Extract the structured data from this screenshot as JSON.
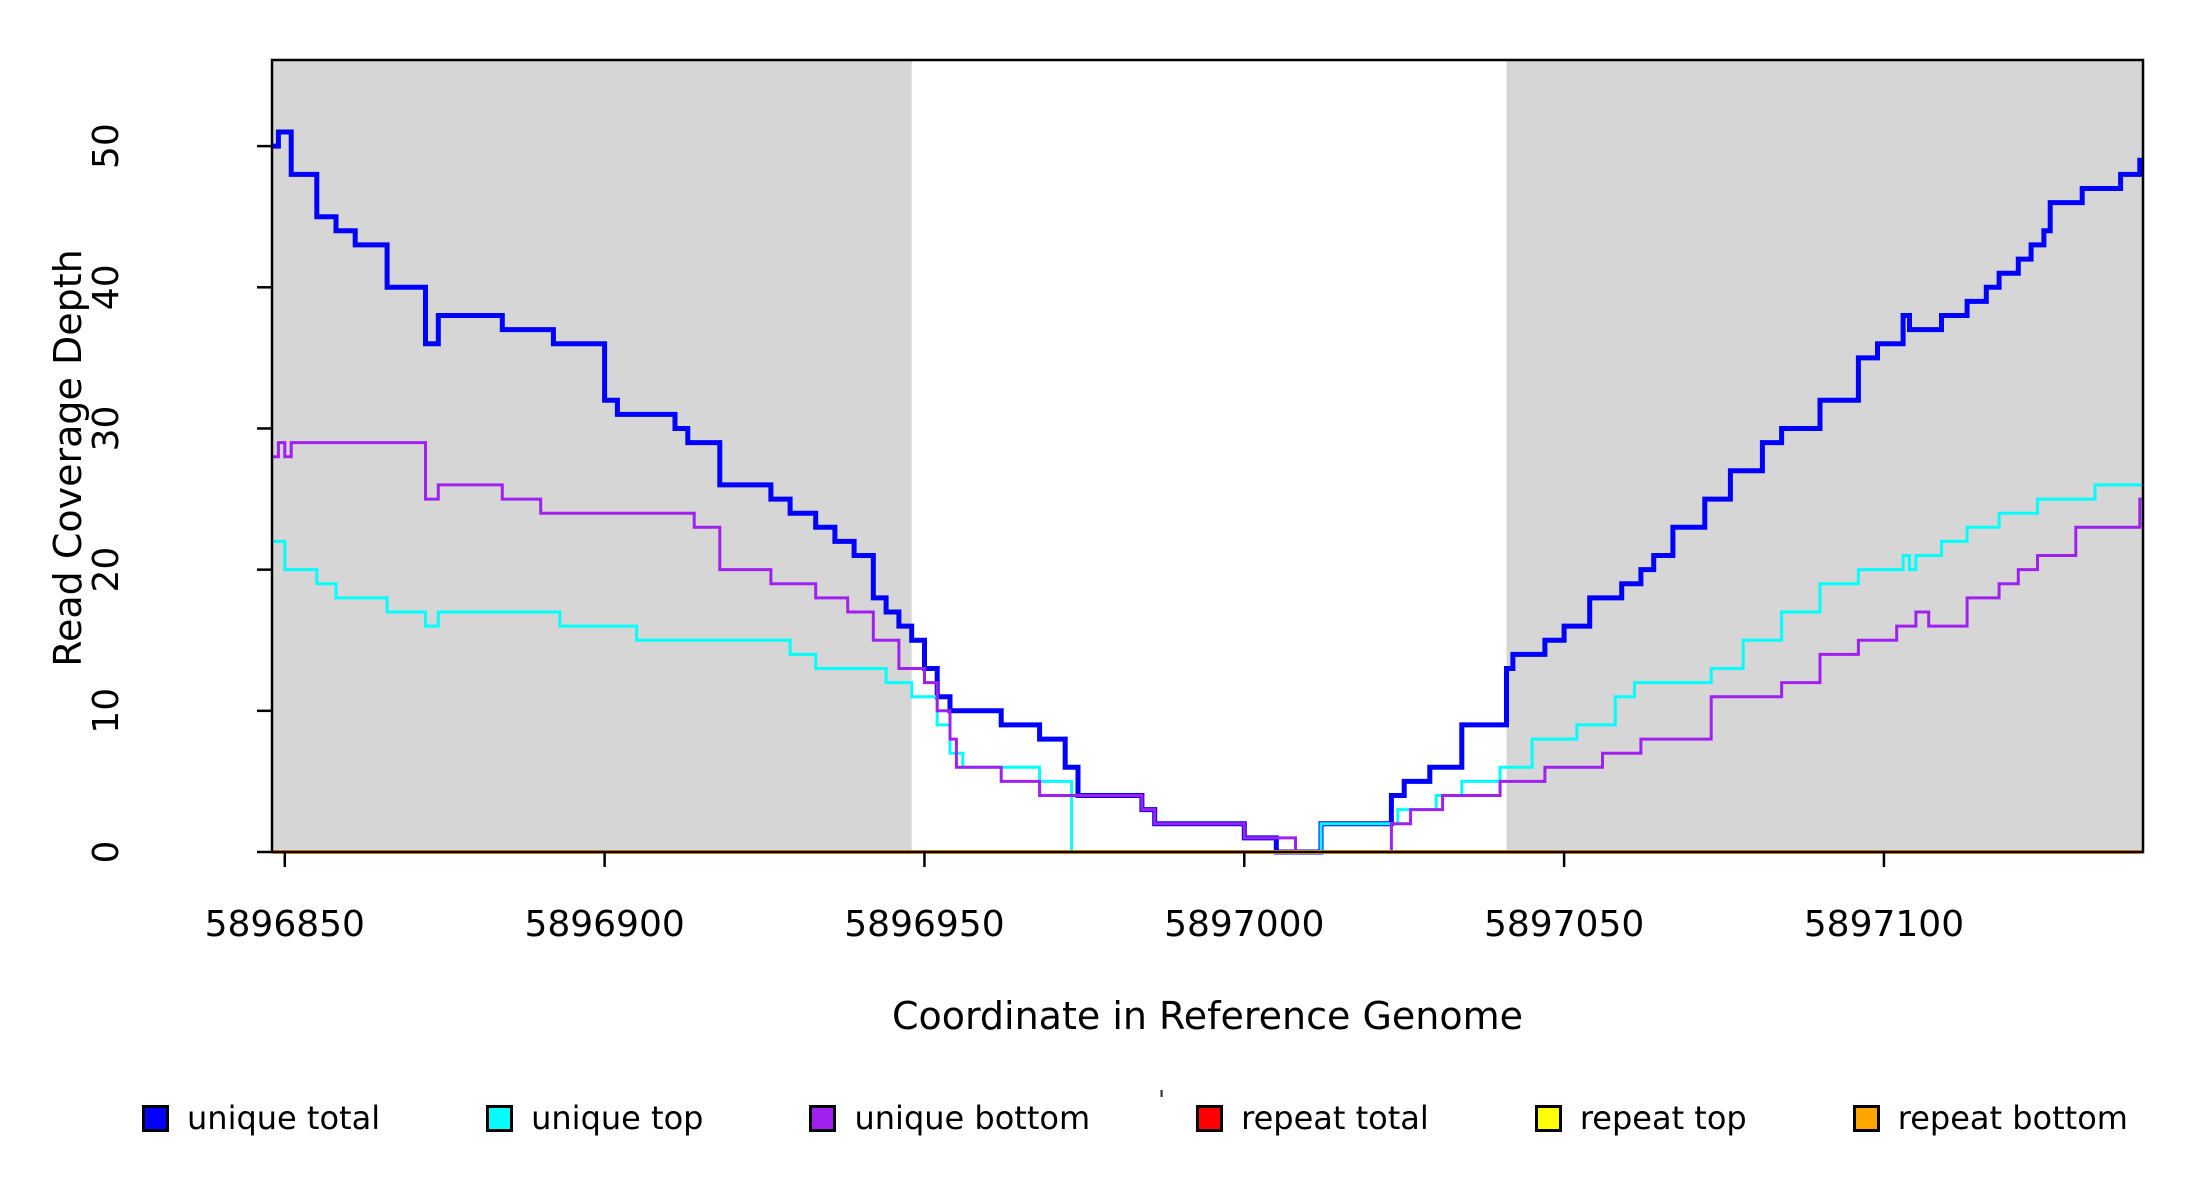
{
  "chart_data": {
    "type": "line",
    "subtype": "step",
    "title": "",
    "xlabel": "Coordinate in Reference Genome",
    "ylabel": "Read Coverage Depth",
    "xlim": [
      5896848,
      5897140.5
    ],
    "ylim": [
      0,
      56.1
    ],
    "grid": false,
    "legend_position": "bottom",
    "x_ticks": [
      5896850,
      5896900,
      5896950,
      5897000,
      5897050,
      5897100
    ],
    "x_tick_labels": [
      "5896850",
      "5896900",
      "5896950",
      "5897000",
      "5897050",
      "5897100"
    ],
    "y_ticks": [
      0,
      10,
      20,
      30,
      40,
      50
    ],
    "y_tick_labels": [
      "0",
      "10",
      "20",
      "30",
      "40",
      "50"
    ],
    "shaded_region_color": "#d6d6d6",
    "shaded_regions": [
      {
        "x0": 5896848,
        "x1": 5896948
      },
      {
        "x0": 5897041,
        "x1": 5897140.5
      }
    ],
    "series": [
      {
        "name": "unique total",
        "color": "#0000FF",
        "width": 5,
        "points": [
          [
            5896848,
            50
          ],
          [
            5896849,
            51
          ],
          [
            5896851,
            48
          ],
          [
            5896855,
            45
          ],
          [
            5896858,
            44
          ],
          [
            5896861,
            43
          ],
          [
            5896866,
            40
          ],
          [
            5896872,
            36
          ],
          [
            5896874,
            38
          ],
          [
            5896884,
            37
          ],
          [
            5896892,
            36
          ],
          [
            5896900,
            32
          ],
          [
            5896902,
            31
          ],
          [
            5896911,
            30
          ],
          [
            5896913,
            29
          ],
          [
            5896918,
            26
          ],
          [
            5896926,
            25
          ],
          [
            5896929,
            24
          ],
          [
            5896933,
            23
          ],
          [
            5896936,
            22
          ],
          [
            5896939,
            21
          ],
          [
            5896942,
            18
          ],
          [
            5896944,
            17
          ],
          [
            5896946,
            16
          ],
          [
            5896948,
            15
          ],
          [
            5896950,
            13
          ],
          [
            5896952,
            11
          ],
          [
            5896954,
            10
          ],
          [
            5896962,
            9
          ],
          [
            5896968,
            8
          ],
          [
            5896972,
            6
          ],
          [
            5896974,
            4
          ],
          [
            5896984,
            3
          ],
          [
            5896986,
            2
          ],
          [
            5897000,
            1
          ],
          [
            5897005,
            0
          ],
          [
            5897012,
            2
          ],
          [
            5897023,
            4
          ],
          [
            5897025,
            5
          ],
          [
            5897029,
            6
          ],
          [
            5897034,
            9
          ],
          [
            5897041,
            13
          ],
          [
            5897042,
            14
          ],
          [
            5897047,
            15
          ],
          [
            5897050,
            16
          ],
          [
            5897054,
            18
          ],
          [
            5897059,
            19
          ],
          [
            5897062,
            20
          ],
          [
            5897064,
            21
          ],
          [
            5897067,
            23
          ],
          [
            5897072,
            25
          ],
          [
            5897076,
            27
          ],
          [
            5897081,
            29
          ],
          [
            5897084,
            30
          ],
          [
            5897090,
            32
          ],
          [
            5897096,
            35
          ],
          [
            5897099,
            36
          ],
          [
            5897103,
            38
          ],
          [
            5897104,
            37
          ],
          [
            5897109,
            38
          ],
          [
            5897113,
            39
          ],
          [
            5897116,
            40
          ],
          [
            5897118,
            41
          ],
          [
            5897121,
            42
          ],
          [
            5897123,
            43
          ],
          [
            5897125,
            44
          ],
          [
            5897126,
            46
          ],
          [
            5897131,
            47
          ],
          [
            5897137,
            48
          ],
          [
            5897140,
            49
          ]
        ]
      },
      {
        "name": "unique top",
        "color": "#00FFFF",
        "width": 3,
        "points": [
          [
            5896848,
            22
          ],
          [
            5896850,
            20
          ],
          [
            5896855,
            19
          ],
          [
            5896858,
            18
          ],
          [
            5896866,
            17
          ],
          [
            5896872,
            16
          ],
          [
            5896874,
            17
          ],
          [
            5896893,
            16
          ],
          [
            5896905,
            15
          ],
          [
            5896929,
            14
          ],
          [
            5896933,
            13
          ],
          [
            5896944,
            12
          ],
          [
            5896948,
            11
          ],
          [
            5896952,
            9
          ],
          [
            5896954,
            7
          ],
          [
            5896956,
            6
          ],
          [
            5896968,
            5
          ],
          [
            5896973,
            0
          ],
          [
            5897012,
            2
          ],
          [
            5897024,
            3
          ],
          [
            5897030,
            4
          ],
          [
            5897034,
            5
          ],
          [
            5897040,
            6
          ],
          [
            5897045,
            8
          ],
          [
            5897052,
            9
          ],
          [
            5897058,
            11
          ],
          [
            5897061,
            12
          ],
          [
            5897073,
            13
          ],
          [
            5897078,
            15
          ],
          [
            5897084,
            17
          ],
          [
            5897090,
            19
          ],
          [
            5897096,
            20
          ],
          [
            5897103,
            21
          ],
          [
            5897104,
            20
          ],
          [
            5897105,
            21
          ],
          [
            5897109,
            22
          ],
          [
            5897113,
            23
          ],
          [
            5897118,
            24
          ],
          [
            5897124,
            25
          ],
          [
            5897133,
            26
          ]
        ]
      },
      {
        "name": "unique bottom",
        "color": "#A020F0",
        "width": 3,
        "points": [
          [
            5896848,
            28
          ],
          [
            5896849,
            29
          ],
          [
            5896850,
            28
          ],
          [
            5896851,
            29
          ],
          [
            5896872,
            25
          ],
          [
            5896874,
            26
          ],
          [
            5896884,
            25
          ],
          [
            5896890,
            24
          ],
          [
            5896914,
            23
          ],
          [
            5896918,
            20
          ],
          [
            5896926,
            19
          ],
          [
            5896933,
            18
          ],
          [
            5896938,
            17
          ],
          [
            5896942,
            15
          ],
          [
            5896946,
            13
          ],
          [
            5896950,
            12
          ],
          [
            5896952,
            10
          ],
          [
            5896954,
            8
          ],
          [
            5896955,
            6
          ],
          [
            5896962,
            5
          ],
          [
            5896968,
            4
          ],
          [
            5896984,
            3
          ],
          [
            5896986,
            2
          ],
          [
            5897000,
            1
          ],
          [
            5897008,
            0
          ],
          [
            5897023,
            2
          ],
          [
            5897026,
            3
          ],
          [
            5897031,
            4
          ],
          [
            5897040,
            5
          ],
          [
            5897047,
            6
          ],
          [
            5897056,
            7
          ],
          [
            5897062,
            8
          ],
          [
            5897073,
            11
          ],
          [
            5897084,
            12
          ],
          [
            5897090,
            14
          ],
          [
            5897096,
            15
          ],
          [
            5897102,
            16
          ],
          [
            5897105,
            17
          ],
          [
            5897107,
            16
          ],
          [
            5897113,
            18
          ],
          [
            5897118,
            19
          ],
          [
            5897121,
            20
          ],
          [
            5897124,
            21
          ],
          [
            5897130,
            23
          ],
          [
            5897140,
            25
          ]
        ]
      },
      {
        "name": "repeat total",
        "color": "#FF0000",
        "width": 3,
        "points": [
          [
            5896848,
            0
          ]
        ]
      },
      {
        "name": "repeat top",
        "color": "#FFFF00",
        "width": 3,
        "points": [
          [
            5896848,
            0
          ]
        ]
      },
      {
        "name": "repeat bottom",
        "color": "#FFA500",
        "width": 4,
        "points": [
          [
            5896848,
            0
          ]
        ]
      }
    ],
    "legend": [
      {
        "label": "unique total",
        "color": "#0000FF"
      },
      {
        "label": "unique top",
        "color": "#00FFFF"
      },
      {
        "label": "unique bottom",
        "color": "#A020F0"
      },
      {
        "label": "repeat total",
        "color": "#FF0000"
      },
      {
        "label": "repeat top",
        "color": "#FFFF00"
      },
      {
        "label": "repeat bottom",
        "color": "#FFA500"
      }
    ]
  },
  "labels": {
    "x_axis_title": "Coordinate in Reference Genome",
    "y_axis_title": "Read Coverage Depth",
    "stray_mark": "'"
  }
}
